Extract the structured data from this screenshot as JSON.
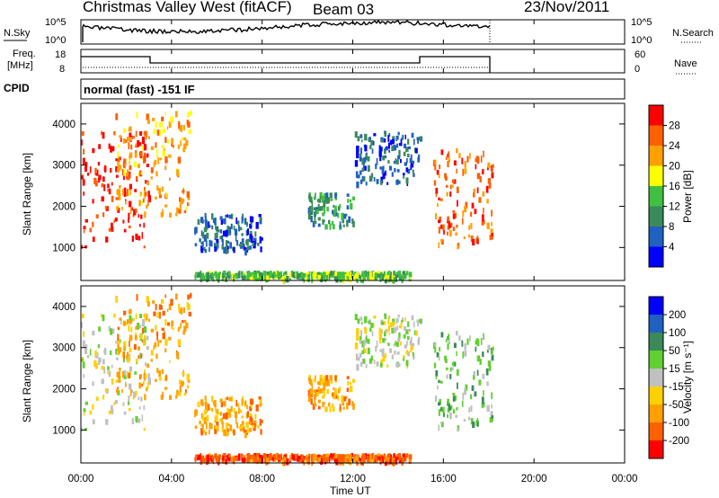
{
  "header": {
    "station": "Christmas Valley West (fitACF)",
    "beam": "Beam 03",
    "date": "23/Nov/2011"
  },
  "top_panels": {
    "nsky_label": "N.Sky",
    "nsky_ticks": [
      "10^5",
      "10^0"
    ],
    "nsearch_label": "N.Search",
    "nsearch_ticks": [
      "10^5",
      "10^0"
    ],
    "freq_label_line1": "Freq.",
    "freq_label_line2": "[MHz]",
    "freq_ticks": [
      "18",
      "8"
    ],
    "nave_label": "Nave",
    "nave_ticks": [
      "60",
      "0"
    ],
    "cpid_label": "CPID",
    "cpid_value": "normal (fast) -151 IF"
  },
  "colors": {
    "power_scale": [
      "#0000ff",
      "#2060c0",
      "#3a8a5a",
      "#40c040",
      "#ffff00",
      "#ffa000",
      "#ff6000",
      "#ff0000"
    ],
    "velocity_scale": [
      "#ff0000",
      "#ff6000",
      "#ffa000",
      "#ffd000",
      "#c0c0c0",
      "#60d030",
      "#3a8a5a",
      "#2060c0",
      "#0000ff"
    ]
  },
  "chart_data": [
    {
      "type": "heatmap",
      "name": "power-panel",
      "ylabel": "Slant Range [km]",
      "xlabel": "",
      "y_ticks": [
        "1000",
        "2000",
        "3000",
        "4000"
      ],
      "ylim": [
        200,
        4500
      ],
      "x_ticks": [
        "00:00",
        "04:00",
        "08:00",
        "12:00",
        "16:00",
        "20:00",
        "00:00"
      ],
      "colorbar": {
        "label": "Power [dB]",
        "ticks": [
          "4",
          "8",
          "12",
          "16",
          "20",
          "24",
          "28"
        ]
      },
      "regions": [
        {
          "t0": 0.0,
          "t1": 3.0,
          "r0": 1000,
          "r1": 3800,
          "level": 7
        },
        {
          "t0": 1.5,
          "t1": 4.8,
          "r0": 1800,
          "r1": 4300,
          "level": 5
        },
        {
          "t0": 5.0,
          "t1": 8.0,
          "r0": 900,
          "r1": 1800,
          "level": 1
        },
        {
          "t0": 5.0,
          "t1": 14.5,
          "r0": 250,
          "r1": 400,
          "level": 3
        },
        {
          "t0": 10.0,
          "t1": 12.0,
          "r0": 1500,
          "r1": 2300,
          "level": 2
        },
        {
          "t0": 12.0,
          "t1": 15.0,
          "r0": 2500,
          "r1": 3800,
          "level": 1
        },
        {
          "t0": 15.5,
          "t1": 18.2,
          "r0": 1000,
          "r1": 3400,
          "level": 6
        }
      ]
    },
    {
      "type": "heatmap",
      "name": "velocity-panel",
      "ylabel": "Slant Range [km]",
      "xlabel": "Time UT",
      "y_ticks": [
        "1000",
        "2000",
        "3000",
        "4000"
      ],
      "ylim": [
        200,
        4500
      ],
      "x_ticks": [
        "00:00",
        "04:00",
        "08:00",
        "12:00",
        "16:00",
        "20:00",
        "00:00"
      ],
      "colorbar": {
        "label": "Velocity [m s⁻¹]",
        "ticks": [
          "-200",
          "-100",
          "-50",
          "-15",
          "15",
          "50",
          "100",
          "200"
        ]
      },
      "regions": [
        {
          "t0": 0.0,
          "t1": 3.0,
          "r0": 1000,
          "r1": 3800,
          "level": 4
        },
        {
          "t0": 1.5,
          "t1": 4.8,
          "r0": 1800,
          "r1": 4300,
          "level": 2
        },
        {
          "t0": 5.0,
          "t1": 8.0,
          "r0": 900,
          "r1": 1800,
          "level": 2
        },
        {
          "t0": 5.0,
          "t1": 14.5,
          "r0": 250,
          "r1": 400,
          "level": 1
        },
        {
          "t0": 10.0,
          "t1": 12.0,
          "r0": 1500,
          "r1": 2300,
          "level": 2
        },
        {
          "t0": 12.0,
          "t1": 15.0,
          "r0": 2500,
          "r1": 3800,
          "level": 4
        },
        {
          "t0": 15.5,
          "t1": 18.2,
          "r0": 1000,
          "r1": 3400,
          "level": 5
        }
      ]
    }
  ]
}
